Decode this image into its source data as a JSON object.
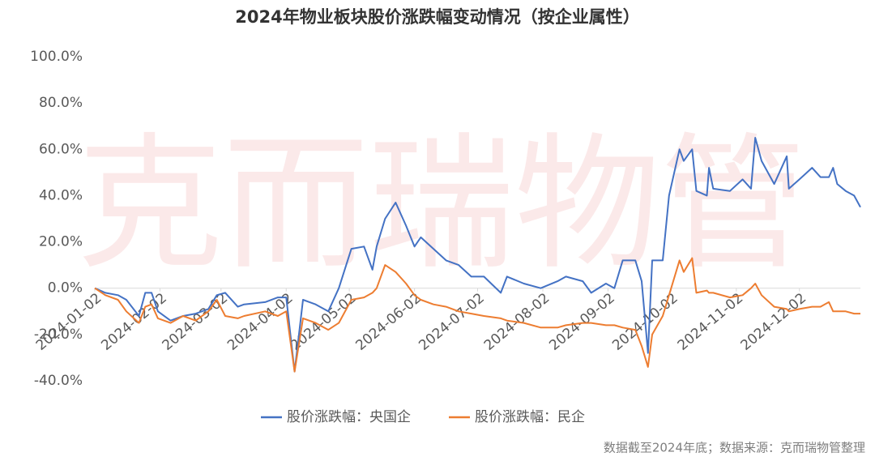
{
  "chart_data": {
    "type": "line",
    "title": "2024年物业板块股价涨跌幅变动情况（按企业属性）",
    "watermark": "克而瑞物管",
    "source": "数据截至2024年底；数据来源：克而瑞物管整理",
    "x": [
      "2024-01-02",
      "2024-01-07",
      "2024-01-13",
      "2024-01-17",
      "2024-01-23",
      "2024-01-26",
      "2024-01-29",
      "2024-02-01",
      "2024-02-07",
      "2024-02-13",
      "2024-02-19",
      "2024-02-25",
      "2024-02-29",
      "2024-03-04",
      "2024-03-10",
      "2024-03-13",
      "2024-03-23",
      "2024-03-29",
      "2024-04-02",
      "2024-04-06",
      "2024-04-10",
      "2024-04-16",
      "2024-04-22",
      "2024-04-27",
      "2024-05-03",
      "2024-05-09",
      "2024-05-13",
      "2024-05-15",
      "2024-05-19",
      "2024-05-24",
      "2024-05-29",
      "2024-06-02",
      "2024-06-05",
      "2024-06-11",
      "2024-06-17",
      "2024-06-23",
      "2024-06-29",
      "2024-07-05",
      "2024-07-13",
      "2024-07-16",
      "2024-07-24",
      "2024-08-01",
      "2024-08-09",
      "2024-08-13",
      "2024-08-21",
      "2024-08-25",
      "2024-09-01",
      "2024-09-05",
      "2024-09-09",
      "2024-09-15",
      "2024-09-18",
      "2024-09-21",
      "2024-09-23",
      "2024-09-28",
      "2024-10-01",
      "2024-10-06",
      "2024-10-08",
      "2024-10-12",
      "2024-10-14",
      "2024-10-19",
      "2024-10-20",
      "2024-10-22",
      "2024-10-30",
      "2024-11-05",
      "2024-11-09",
      "2024-11-11",
      "2024-11-14",
      "2024-11-20",
      "2024-11-26",
      "2024-11-27",
      "2024-12-02",
      "2024-12-08",
      "2024-12-12",
      "2024-12-16",
      "2024-12-18",
      "2024-12-20",
      "2024-12-24",
      "2024-12-28",
      "2024-12-31"
    ],
    "series": [
      {
        "name": "股价涨跌幅：央国企",
        "color": "#4472c4",
        "values": [
          0,
          -2,
          -3,
          -5,
          -12,
          -2,
          -2,
          -10,
          -14,
          -12,
          -11,
          -9,
          -3,
          -2,
          -8,
          -7,
          -6,
          -4,
          -4,
          -36,
          -5,
          -7,
          -10,
          0,
          17,
          18,
          8,
          18,
          30,
          37,
          27,
          18,
          22,
          17,
          12,
          10,
          5,
          5,
          -2,
          5,
          2,
          0,
          3,
          5,
          3,
          -2,
          2,
          0,
          12,
          12,
          3,
          -28,
          12,
          12,
          40,
          60,
          55,
          60,
          42,
          40,
          52,
          43,
          42,
          47,
          43,
          65,
          55,
          45,
          57,
          43,
          47,
          52,
          48,
          48,
          52,
          45,
          42,
          40,
          35
        ]
      },
      {
        "name": "股价涨跌幅：民企",
        "color": "#ed7d31",
        "values": [
          0,
          -3,
          -5,
          -10,
          -15,
          -8,
          -7,
          -13,
          -15,
          -12,
          -14,
          -10,
          -5,
          -12,
          -13,
          -12,
          -10,
          -12,
          -10,
          -36,
          -13,
          -15,
          -18,
          -15,
          -5,
          -4,
          -2,
          0,
          10,
          7,
          2,
          -3,
          -5,
          -7,
          -8,
          -10,
          -11,
          -12,
          -13,
          -14,
          -15,
          -17,
          -17,
          -16,
          -15,
          -15,
          -16,
          -16,
          -17,
          -18,
          -25,
          -34,
          -20,
          -12,
          -3,
          12,
          7,
          13,
          -2,
          -1,
          -2,
          -2,
          -4,
          -3,
          0,
          2,
          -3,
          -8,
          -9,
          -10,
          -9,
          -8,
          -8,
          -6,
          -10,
          -10,
          -10,
          -11,
          -11
        ]
      }
    ],
    "xlim": [
      "2024-01-02",
      "2024-12-31"
    ],
    "xticks": [
      "2024-01-02",
      "2024-02-02",
      "2024-03-02",
      "2024-04-02",
      "2024-05-02",
      "2024-06-02",
      "2024-07-02",
      "2024-08-02",
      "2024-09-02",
      "2024-10-02",
      "2024-11-02",
      "2024-12-02"
    ],
    "ylim": [
      -40,
      100
    ],
    "yticks": [
      {
        "value": -40,
        "label": "-40.0%"
      },
      {
        "value": -20,
        "label": "-20.0%"
      },
      {
        "value": 0,
        "label": "0.0%"
      },
      {
        "value": 20,
        "label": "20.0%"
      },
      {
        "value": 40,
        "label": "40.0%"
      },
      {
        "value": 60,
        "label": "60.0%"
      },
      {
        "value": 80,
        "label": "80.0%"
      },
      {
        "value": 100,
        "label": "100.0%"
      }
    ],
    "grid": false,
    "legend": "bottom"
  }
}
